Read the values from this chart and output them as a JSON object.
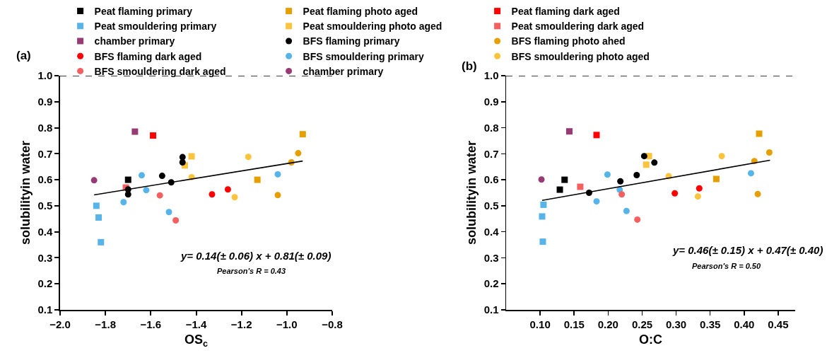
{
  "chart_data": [
    {
      "type": "scatter",
      "title": "(a)",
      "xlabel": "OS$_{c}$",
      "ylabel": "solubilityin water",
      "legend": "top",
      "grid": false,
      "xlim": [
        -2,
        -0.8
      ],
      "xticks": [
        {
          "value": -2,
          "label": "−2.0"
        },
        {
          "value": -1.8,
          "label": "−1.8"
        },
        {
          "value": -1.6,
          "label": "−1.6"
        },
        {
          "value": -1.4,
          "label": "−1.4"
        },
        {
          "value": -1.2,
          "label": "−1.2"
        },
        {
          "value": -1,
          "label": "−1.0"
        },
        {
          "value": -0.8,
          "label": "−0.8"
        }
      ],
      "ylim": [
        0.1,
        1.0
      ],
      "yticks": [
        0.1,
        0.2,
        0.3,
        0.4,
        0.5,
        0.6,
        0.7,
        0.8,
        0.9,
        {
          "value": 1,
          "label": "1.0"
        }
      ],
      "ref_lines": [
        {
          "axis": "y",
          "value": 1,
          "label": null,
          "color": "#000000",
          "line_style": "dashed"
        }
      ],
      "annotations": [
        "y= 0.14(± 0.06) x + 0.81(± 0.09)",
        "Pearson's R = 0.43"
      ],
      "series": [
        {
          "name": "Peat flaming primary",
          "color": "#000000",
          "marker": "square",
          "x": [
            -1.7
          ],
          "values": [
            0.6
          ]
        },
        {
          "name": "Peat flaming photo aged",
          "color": "#e69f00",
          "marker": "square",
          "x": [
            -0.93,
            -1.13
          ],
          "values": [
            0.775,
            0.6
          ]
        },
        {
          "name": "Peat flaming dark aged",
          "color": "#ff0000",
          "marker": "square",
          "x": [
            -1.59
          ],
          "values": [
            0.77
          ]
        },
        {
          "name": "Peat smouldering primary",
          "color": "#56b4e9",
          "marker": "square",
          "x": [
            -1.84,
            -1.83,
            -1.82
          ],
          "values": [
            0.5,
            0.455,
            0.36
          ]
        },
        {
          "name": "Peat smouldering photo aged",
          "color": "#fcc43d",
          "marker": "square",
          "x": [
            -1.42,
            -1.45
          ],
          "values": [
            0.69,
            0.655
          ]
        },
        {
          "name": "Peat smouldering dark aged",
          "color": "#f55f5f",
          "marker": "square",
          "x": [
            -1.71
          ],
          "values": [
            0.57
          ]
        },
        {
          "name": "chamber primary",
          "color": "#983b74",
          "marker": "square",
          "x": [
            -1.67
          ],
          "values": [
            0.785
          ]
        },
        {
          "name": "BFS flaming primary",
          "color": "#000000",
          "marker": "circle",
          "x": [
            -1.46,
            -1.46,
            -1.55,
            -1.51,
            -1.7,
            -1.7
          ],
          "values": [
            0.687,
            0.667,
            0.615,
            0.59,
            0.563,
            0.544
          ]
        },
        {
          "name": "BFS flaming photo ahed",
          "color": "#e69f00",
          "marker": "circle",
          "x": [
            -0.95,
            -0.98,
            -1.04
          ],
          "values": [
            0.702,
            0.667,
            0.541
          ]
        },
        {
          "name": "BFS flaming dark aged",
          "color": "#ff0000",
          "marker": "circle",
          "x": [
            -1.33,
            -1.26
          ],
          "values": [
            0.544,
            0.563
          ]
        },
        {
          "name": "BFS smouldering primary",
          "color": "#56b4e9",
          "marker": "circle",
          "x": [
            -1.64,
            -1.62,
            -1.72,
            -1.52,
            -1.04
          ],
          "values": [
            0.617,
            0.56,
            0.514,
            0.476,
            0.621
          ]
        },
        {
          "name": "BFS smouldering photo aged",
          "color": "#fcc43d",
          "marker": "circle",
          "x": [
            -1.42,
            -1.17,
            -1.23
          ],
          "values": [
            0.61,
            0.688,
            0.533
          ]
        },
        {
          "name": "BFS smouldering dark aged",
          "color": "#f55f5f",
          "marker": "circle",
          "x": [
            -1.56,
            -1.49
          ],
          "values": [
            0.54,
            0.444
          ]
        },
        {
          "name": "chamber primary",
          "color": "#983b74",
          "marker": "circle",
          "x": [
            -1.85
          ],
          "values": [
            0.598
          ]
        },
        {
          "type": "line",
          "color": "#000000",
          "marker": "none",
          "line_style": "solid",
          "x": [
            -1.85,
            -0.93
          ],
          "values": [
            0.542,
            0.672
          ]
        }
      ]
    },
    {
      "type": "scatter",
      "title": "(b)",
      "xlabel": "O:C",
      "ylabel": "solubilityin water",
      "legend": false,
      "grid": false,
      "xlim": [
        0.05,
        0.475
      ],
      "xticks": [
        {
          "value": 0.1,
          "label": "0.10"
        },
        0.15,
        {
          "value": 0.2,
          "label": "0.20"
        },
        0.25,
        {
          "value": 0.3,
          "label": "0.30"
        },
        0.35,
        {
          "value": 0.4,
          "label": "0.40"
        },
        0.45
      ],
      "ylim": [
        0.1,
        1.0
      ],
      "yticks": [
        0.1,
        0.2,
        0.3,
        0.4,
        0.5,
        0.6,
        0.7,
        0.8,
        0.9,
        {
          "value": 1,
          "label": "1.0"
        }
      ],
      "ref_lines": [
        {
          "axis": "y",
          "value": 1,
          "label": null,
          "color": "#000000",
          "line_style": "dashed"
        }
      ],
      "annotations": [
        "y= 0.46(± 0.15) x + 0.47(± 0.40)",
        "Pearson's R = 0.50"
      ],
      "series": [
        {
          "color": "#000000",
          "marker": "square",
          "x": [
            0.136,
            0.129
          ],
          "values": [
            0.6,
            0.562
          ]
        },
        {
          "color": "#e69f00",
          "marker": "square",
          "x": [
            0.422,
            0.359
          ],
          "values": [
            0.777,
            0.603
          ]
        },
        {
          "color": "#ff0000",
          "marker": "square",
          "x": [
            0.183
          ],
          "values": [
            0.772
          ]
        },
        {
          "color": "#56b4e9",
          "marker": "square",
          "x": [
            0.105,
            0.103,
            0.104
          ],
          "values": [
            0.504,
            0.459,
            0.362
          ]
        },
        {
          "color": "#fcc43d",
          "marker": "square",
          "x": [
            0.26,
            0.256
          ],
          "values": [
            0.691,
            0.658
          ]
        },
        {
          "color": "#f55f5f",
          "marker": "square",
          "x": [
            0.159
          ],
          "values": [
            0.573
          ]
        },
        {
          "color": "#983b74",
          "marker": "square",
          "x": [
            0.143
          ],
          "values": [
            0.786
          ]
        },
        {
          "color": "#000000",
          "marker": "circle",
          "x": [
            0.253,
            0.268,
            0.242,
            0.218,
            0.172
          ],
          "values": [
            0.691,
            0.666,
            0.618,
            0.594,
            0.55
          ]
        },
        {
          "color": "#e69f00",
          "marker": "circle",
          "x": [
            0.437,
            0.415,
            0.42
          ],
          "values": [
            0.705,
            0.672,
            0.545
          ]
        },
        {
          "color": "#ff0000",
          "marker": "circle",
          "x": [
            0.298,
            0.334
          ],
          "values": [
            0.548,
            0.567
          ]
        },
        {
          "color": "#56b4e9",
          "marker": "circle",
          "x": [
            0.199,
            0.217,
            0.183,
            0.227,
            0.41
          ],
          "values": [
            0.62,
            0.562,
            0.517,
            0.48,
            0.625
          ]
        },
        {
          "color": "#fcc43d",
          "marker": "circle",
          "x": [
            0.289,
            0.367,
            0.332
          ],
          "values": [
            0.614,
            0.691,
            0.536
          ]
        },
        {
          "color": "#f55f5f",
          "marker": "circle",
          "x": [
            0.22,
            0.243
          ],
          "values": [
            0.544,
            0.447
          ]
        },
        {
          "color": "#983b74",
          "marker": "circle",
          "x": [
            0.102
          ],
          "values": [
            0.601
          ]
        },
        {
          "type": "line",
          "color": "#000000",
          "marker": "none",
          "line_style": "solid",
          "x": [
            0.103,
            0.438
          ],
          "values": [
            0.521,
            0.675
          ]
        }
      ]
    }
  ]
}
